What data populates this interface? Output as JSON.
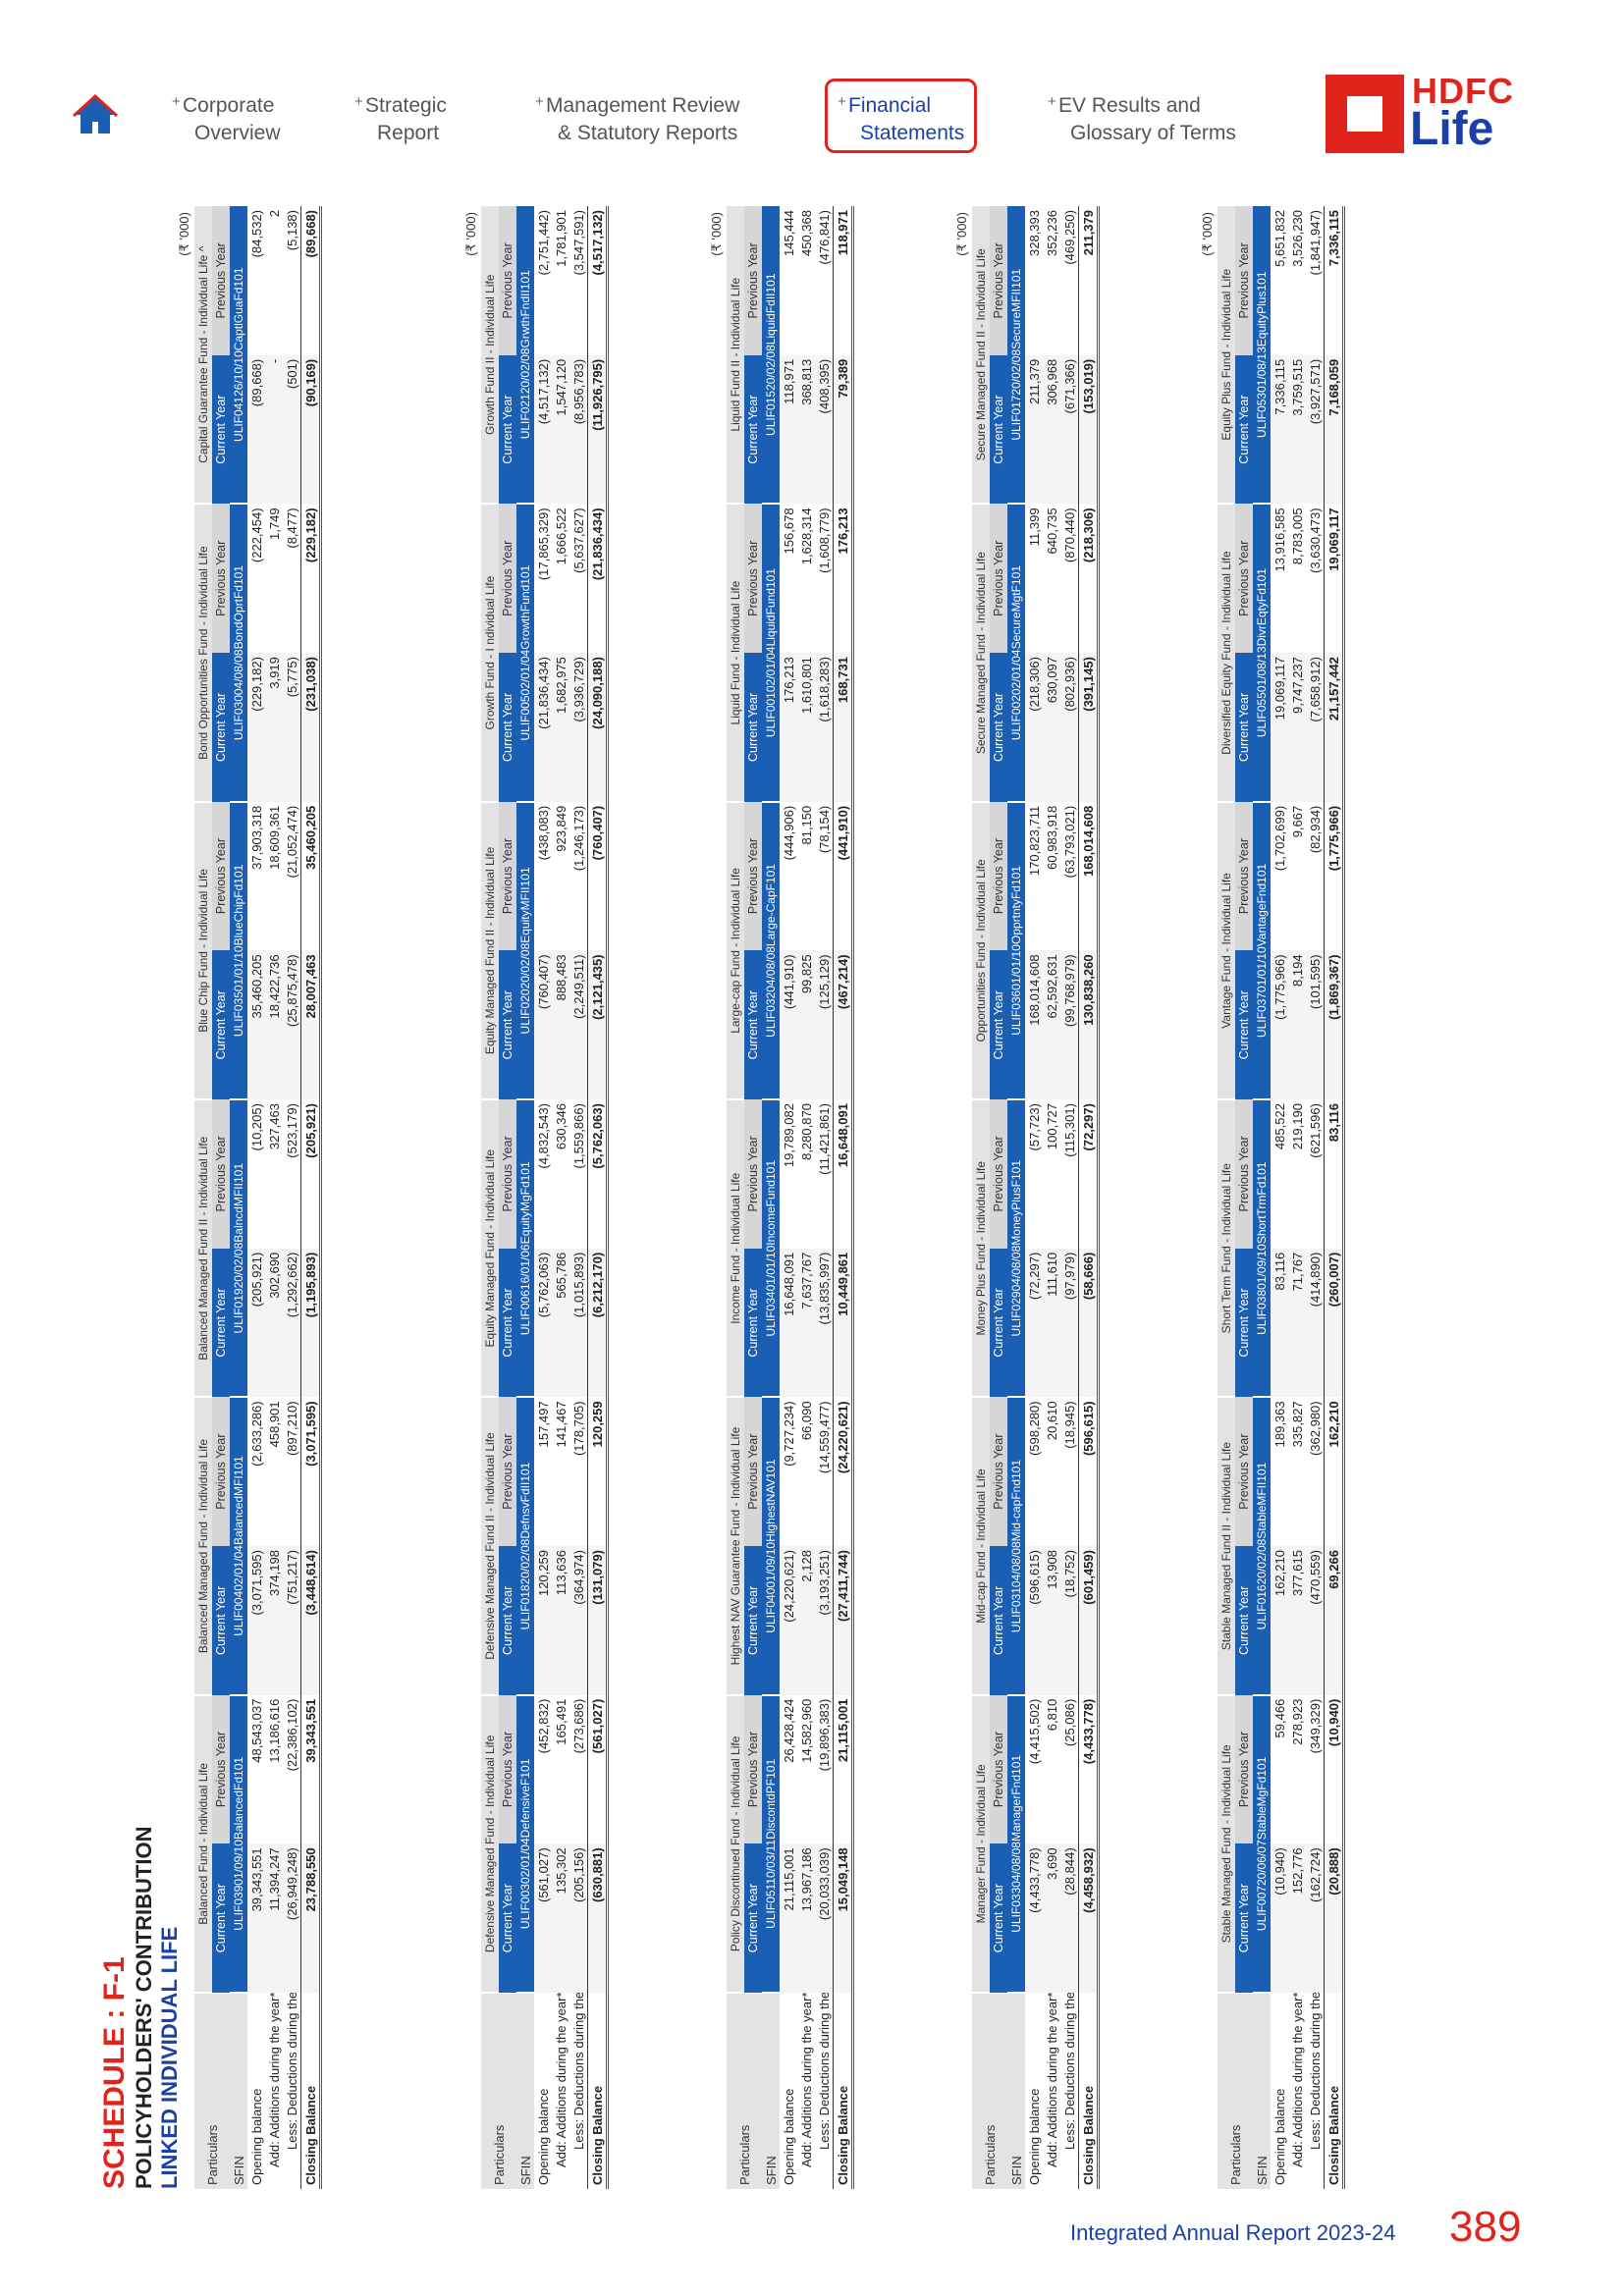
{
  "nav": {
    "items": [
      {
        "l1": "Corporate",
        "l2": "Overview"
      },
      {
        "l1": "Strategic",
        "l2": "Report"
      },
      {
        "l1": "Management Review",
        "l2": "& Statutory Reports"
      },
      {
        "l1": "Financial",
        "l2": "Statements"
      },
      {
        "l1": "EV Results and",
        "l2": "Glossary of Terms"
      }
    ],
    "plus": "+",
    "active_index": 3
  },
  "logo": {
    "line1": "HDFC",
    "line2": "Life"
  },
  "heading": {
    "title": "SCHEDULE : F-1",
    "subtitle": "POLICYHOLDERS' CONTRIBUTION",
    "section": "LINKED INDIVIDUAL LIFE"
  },
  "labels": {
    "unit": "(₹ '000)",
    "particulars": "Particulars",
    "sfin": "SFIN",
    "current_year": "Current Year",
    "previous_year": "Previous Year",
    "rows": [
      "Opening balance",
      "Add: Additions during the year*",
      "Less: Deductions during the year*",
      "Closing Balance"
    ]
  },
  "blocks": [
    {
      "funds": [
        {
          "name": "Balanced Fund - Individual Life",
          "sfin": "ULIF03901/09/10BalancedFd101",
          "cur": [
            "39,343,551",
            "11,394,247",
            "(26,949,248)",
            "23,788,550"
          ],
          "prev": [
            "48,543,037",
            "13,186,616",
            "(22,386,102)",
            "39,343,551"
          ]
        },
        {
          "name": "Balanced Managed Fund - Individual Life",
          "sfin": "ULIF00402/01/04BalancedMFI101",
          "cur": [
            "(3,071,595)",
            "374,198",
            "(751,217)",
            "(3,448,614)"
          ],
          "prev": [
            "(2,633,286)",
            "458,901",
            "(897,210)",
            "(3,071,595)"
          ]
        },
        {
          "name": "Balanced Managed Fund II - Individual Life",
          "sfin": "ULIF01920/02/08BalncdMFII101",
          "cur": [
            "(205,921)",
            "302,690",
            "(1,292,662)",
            "(1,195,893)"
          ],
          "prev": [
            "(10,205)",
            "327,463",
            "(523,179)",
            "(205,921)"
          ]
        },
        {
          "name": "Blue Chip Fund - Individual Life",
          "sfin": "ULIF03501/01/10BlueChipFd101",
          "cur": [
            "35,460,205",
            "18,422,736",
            "(25,875,478)",
            "28,007,463"
          ],
          "prev": [
            "37,903,318",
            "18,609,361",
            "(21,052,474)",
            "35,460,205"
          ]
        },
        {
          "name": "Bond Opportunities Fund - Individual Life",
          "sfin": "ULIF03004/08/08BondOprtFd101",
          "cur": [
            "(229,182)",
            "3,919",
            "(5,775)",
            "(231,038)"
          ],
          "prev": [
            "(222,454)",
            "1,749",
            "(8,477)",
            "(229,182)"
          ]
        },
        {
          "name": "Capital Guarantee Fund - Individual Life ^",
          "sfin": "ULIF04126/10/10CaptlGuaFd101",
          "cur": [
            "(89,668)",
            "-",
            "(501)",
            "(90,169)"
          ],
          "prev": [
            "(84,532)",
            "2",
            "(5,138)",
            "(89,668)"
          ]
        }
      ]
    },
    {
      "funds": [
        {
          "name": "Defensive Managed Fund - Individual Life",
          "sfin": "ULIF00302/01/04DefensiveF101",
          "cur": [
            "(561,027)",
            "135,302",
            "(205,156)",
            "(630,881)"
          ],
          "prev": [
            "(452,832)",
            "165,491",
            "(273,686)",
            "(561,027)"
          ]
        },
        {
          "name": "Defensive Managed Fund II - Individual Life",
          "sfin": "ULIF01820/02/08DefnsvFdII101",
          "cur": [
            "120,259",
            "113,636",
            "(364,974)",
            "(131,079)"
          ],
          "prev": [
            "157,497",
            "141,467",
            "(178,705)",
            "120,259"
          ]
        },
        {
          "name": "Equity Managed Fund - Individual Life",
          "sfin": "ULIF00616/01/06EquityMgFd101",
          "cur": [
            "(5,762,063)",
            "565,786",
            "(1,015,893)",
            "(6,212,170)"
          ],
          "prev": [
            "(4,832,543)",
            "630,346",
            "(1,559,866)",
            "(5,762,063)"
          ]
        },
        {
          "name": "Equity Managed Fund II - Individual Life",
          "sfin": "ULIF02020/02/08EquityMFII101",
          "cur": [
            "(760,407)",
            "888,483",
            "(2,249,511)",
            "(2,121,435)"
          ],
          "prev": [
            "(438,083)",
            "923,849",
            "(1,246,173)",
            "(760,407)"
          ]
        },
        {
          "name": "Growth Fund - I ndividual Life",
          "sfin": "ULIF00502/01/04GrowthFund101",
          "cur": [
            "(21,836,434)",
            "1,682,975",
            "(3,936,729)",
            "(24,090,188)"
          ],
          "prev": [
            "(17,865,329)",
            "1,666,522",
            "(5,637,627)",
            "(21,836,434)"
          ]
        },
        {
          "name": "Growth Fund II - Individual Life",
          "sfin": "ULIF02120/02/08GrwthFndII101",
          "cur": [
            "(4,517,132)",
            "1,547,120",
            "(8,956,783)",
            "(11,926,795)"
          ],
          "prev": [
            "(2,751,442)",
            "1,781,901",
            "(3,547,591)",
            "(4,517,132)"
          ]
        }
      ]
    },
    {
      "funds": [
        {
          "name": "Policy Discontinued Fund - Individual Life",
          "sfin": "ULIF05110/03/11DiscontdPF101",
          "cur": [
            "21,115,001",
            "13,967,186",
            "(20,033,039)",
            "15,049,148"
          ],
          "prev": [
            "26,428,424",
            "14,582,960",
            "(19,896,383)",
            "21,115,001"
          ]
        },
        {
          "name": "Highest NAV Guarantee Fund - Individual Life",
          "sfin": "ULIF04001/09/10HighestNAV101",
          "cur": [
            "(24,220,621)",
            "2,128",
            "(3,193,251)",
            "(27,411,744)"
          ],
          "prev": [
            "(9,727,234)",
            "66,090",
            "(14,559,477)",
            "(24,220,621)"
          ]
        },
        {
          "name": "Income Fund - Individual Life",
          "sfin": "ULIF03401/01/10IncomeFund101",
          "cur": [
            "16,648,091",
            "7,637,767",
            "(13,835,997)",
            "10,449,861"
          ],
          "prev": [
            "19,789,082",
            "8,280,870",
            "(11,421,861)",
            "16,648,091"
          ]
        },
        {
          "name": "Large-cap Fund - Individual Life",
          "sfin": "ULIF03204/08/08Large-CapF101",
          "cur": [
            "(441,910)",
            "99,825",
            "(125,129)",
            "(467,214)"
          ],
          "prev": [
            "(444,906)",
            "81,150",
            "(78,154)",
            "(441,910)"
          ]
        },
        {
          "name": "Liquid Fund - Individual Life",
          "sfin": "ULIF00102/01/04LiquidFund101",
          "cur": [
            "176,213",
            "1,610,801",
            "(1,618,283)",
            "168,731"
          ],
          "prev": [
            "156,678",
            "1,628,314",
            "(1,608,779)",
            "176,213"
          ]
        },
        {
          "name": "Liquid Fund II - Individual Life",
          "sfin": "ULIF01520/02/08LiquidFdII101",
          "cur": [
            "118,971",
            "368,813",
            "(408,395)",
            "79,389"
          ],
          "prev": [
            "145,444",
            "450,368",
            "(476,841)",
            "118,971"
          ]
        }
      ]
    },
    {
      "funds": [
        {
          "name": "Manager Fund - Individual Life",
          "sfin": "ULIF03304/08/08ManagerFnd101",
          "cur": [
            "(4,433,778)",
            "3,690",
            "(28,844)",
            "(4,458,932)"
          ],
          "prev": [
            "(4,415,502)",
            "6,810",
            "(25,086)",
            "(4,433,778)"
          ]
        },
        {
          "name": "Mid-cap Fund - Individual Life",
          "sfin": "ULIF03104/08/08Mid-capFnd101",
          "cur": [
            "(596,615)",
            "13,908",
            "(18,752)",
            "(601,459)"
          ],
          "prev": [
            "(598,280)",
            "20,610",
            "(18,945)",
            "(596,615)"
          ]
        },
        {
          "name": "Money Plus Fund - Individual Life",
          "sfin": "ULIF02904/08/08MoneyPlusF101",
          "cur": [
            "(72,297)",
            "111,610",
            "(97,979)",
            "(58,666)"
          ],
          "prev": [
            "(57,723)",
            "100,727",
            "(115,301)",
            "(72,297)"
          ]
        },
        {
          "name": "Opportunities Fund - Individual Life",
          "sfin": "ULIF03601/01/10OpprtntyFd101",
          "cur": [
            "168,014,608",
            "62,592,631",
            "(99,768,979)",
            "130,838,260"
          ],
          "prev": [
            "170,823,711",
            "60,983,918",
            "(63,793,021)",
            "168,014,608"
          ]
        },
        {
          "name": "Secure Managed Fund - Individual Life",
          "sfin": "ULIF00202/01/04SecureMgtF101",
          "cur": [
            "(218,306)",
            "630,097",
            "(802,936)",
            "(391,145)"
          ],
          "prev": [
            "11,399",
            "640,735",
            "(870,440)",
            "(218,306)"
          ]
        },
        {
          "name": "Secure Managed Fund II - Individual Life",
          "sfin": "ULIF01720/02/08SecureMFII101",
          "cur": [
            "211,379",
            "306,968",
            "(671,366)",
            "(153,019)"
          ],
          "prev": [
            "328,393",
            "352,236",
            "(469,250)",
            "211,379"
          ]
        }
      ]
    },
    {
      "funds": [
        {
          "name": "Stable Managed Fund - Individual Life",
          "sfin": "ULIF00720/06/07StableMgFd101",
          "cur": [
            "(10,940)",
            "152,776",
            "(162,724)",
            "(20,888)"
          ],
          "prev": [
            "59,466",
            "278,923",
            "(349,329)",
            "(10,940)"
          ]
        },
        {
          "name": "Stable Managed Fund II - Individual Life",
          "sfin": "ULIF01620/02/08StableMFII101",
          "cur": [
            "162,210",
            "377,615",
            "(470,559)",
            "69,266"
          ],
          "prev": [
            "189,363",
            "335,827",
            "(362,980)",
            "162,210"
          ]
        },
        {
          "name": "Short Term Fund - Individual Life",
          "sfin": "ULIF03801/09/10ShortTrmFd101",
          "cur": [
            "83,116",
            "71,767",
            "(414,890)",
            "(260,007)"
          ],
          "prev": [
            "485,522",
            "219,190",
            "(621,596)",
            "83,116"
          ]
        },
        {
          "name": "Vantage Fund - Individual Life",
          "sfin": "ULIF03701/01/10VantageFnd101",
          "cur": [
            "(1,775,966)",
            "8,194",
            "(101,595)",
            "(1,869,367)"
          ],
          "prev": [
            "(1,702,699)",
            "9,667",
            "(82,934)",
            "(1,775,966)"
          ]
        },
        {
          "name": "Diversified Equity Fund - Individual Life",
          "sfin": "ULIF05501/08/13DivrEqtyFd101",
          "cur": [
            "19,069,117",
            "9,747,237",
            "(7,658,912)",
            "21,157,442"
          ],
          "prev": [
            "13,916,585",
            "8,783,005",
            "(3,630,473)",
            "19,069,117"
          ]
        },
        {
          "name": "Equity Plus Fund - Individual Life",
          "sfin": "ULIF05301/08/13EquityPlus101",
          "cur": [
            "7,336,115",
            "3,759,515",
            "(3,927,571)",
            "7,168,059"
          ],
          "prev": [
            "5,651,832",
            "3,526,230",
            "(1,841,947)",
            "7,336,115"
          ]
        }
      ]
    }
  ],
  "footer": {
    "report": "Integrated Annual Report 2023-24",
    "page": "389"
  }
}
